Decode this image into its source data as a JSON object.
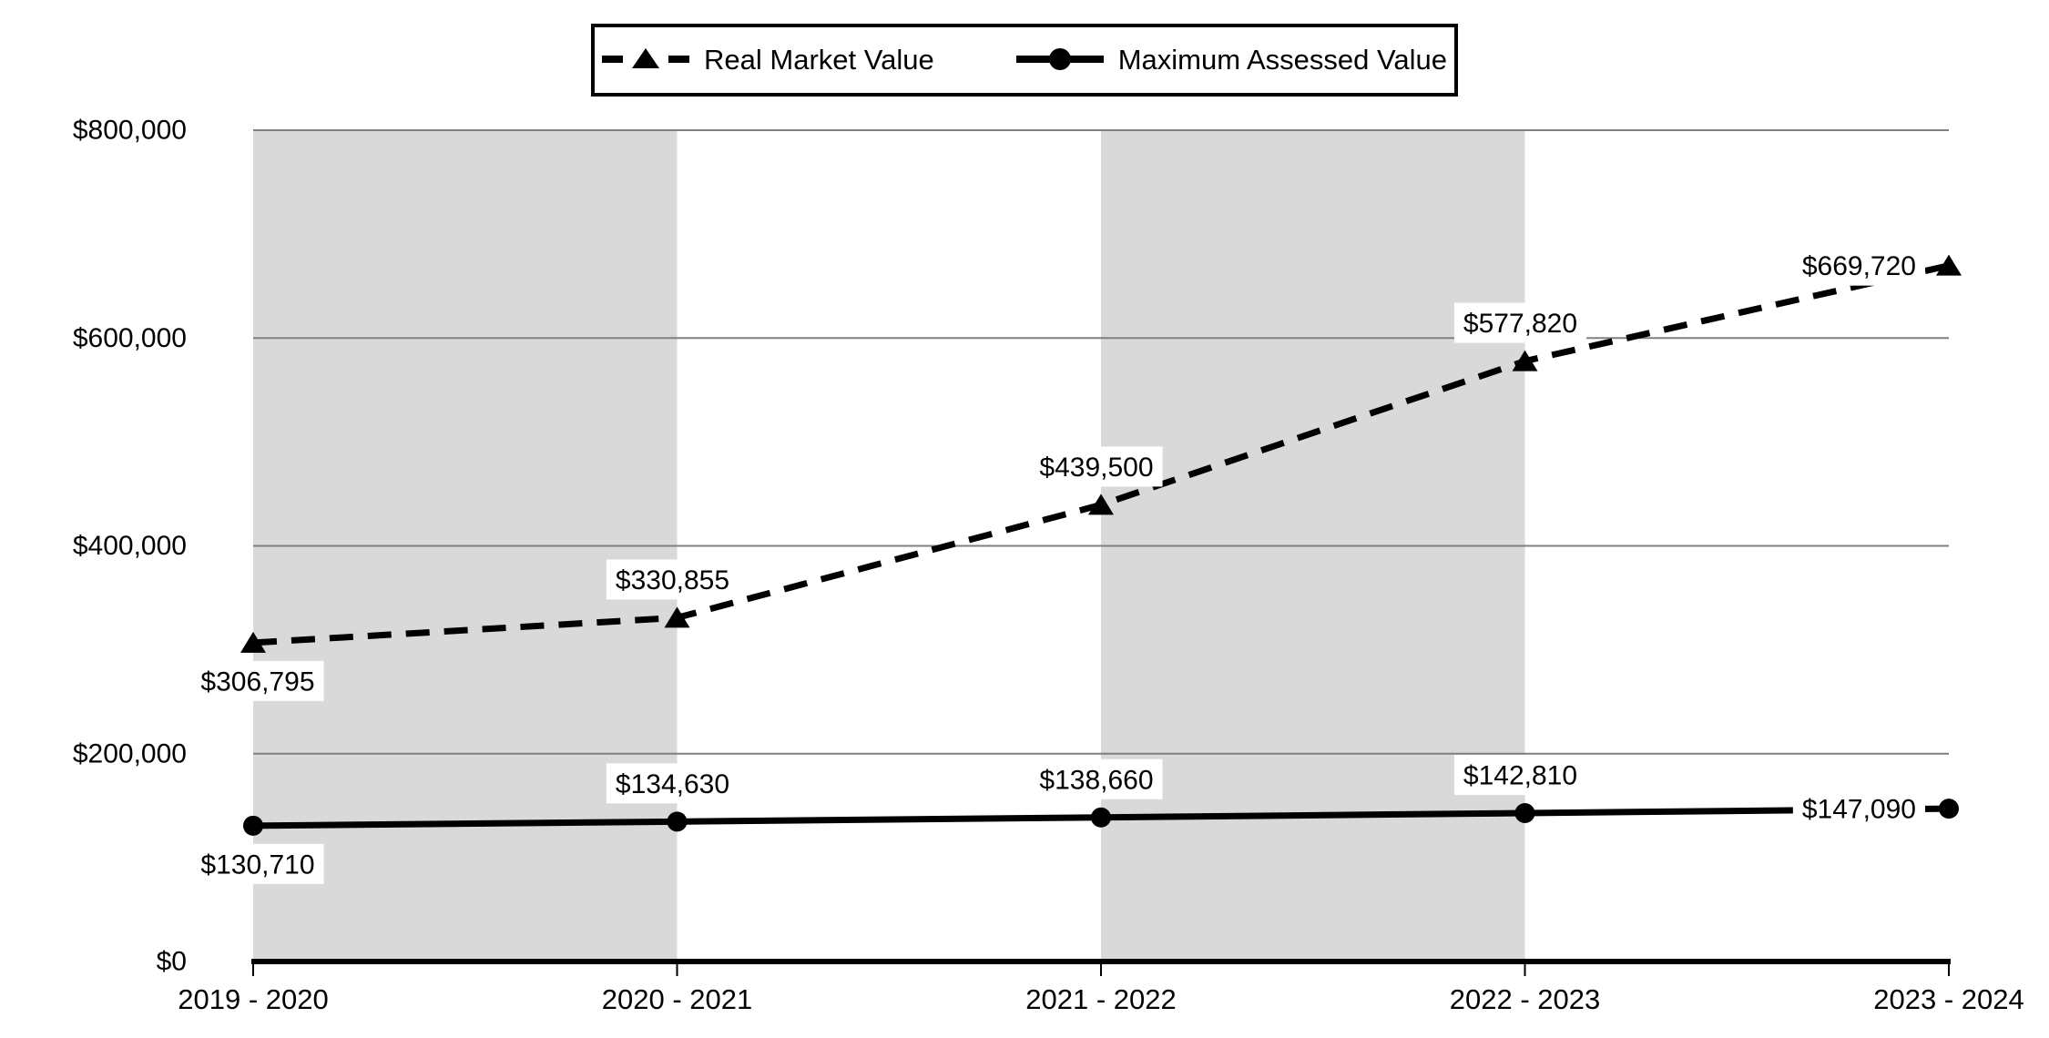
{
  "legend": {
    "items": [
      {
        "label": "Real Market Value",
        "marker": "triangle-dashed-line"
      },
      {
        "label": "Maximum Assessed Value",
        "marker": "circle-solid-line"
      }
    ]
  },
  "chart_data": {
    "type": "line",
    "title": "",
    "xlabel": "",
    "ylabel": "",
    "categories": [
      "2019 - 2020",
      "2020 - 2021",
      "2021 - 2022",
      "2022 - 2023",
      "2023 - 2024"
    ],
    "series": [
      {
        "name": "Real Market Value",
        "line_style": "dashed",
        "marker": "triangle",
        "color": "#000000",
        "values": [
          306795,
          330855,
          439500,
          577820,
          669720
        ],
        "data_labels": [
          "$306,795",
          "$330,855",
          "$439,500",
          "$577,820",
          "$669,720"
        ],
        "label_positions": [
          "below",
          "above",
          "above",
          "above",
          "left"
        ]
      },
      {
        "name": "Maximum Assessed Value",
        "line_style": "solid",
        "marker": "circle",
        "color": "#000000",
        "values": [
          130710,
          134630,
          138660,
          142810,
          147090
        ],
        "data_labels": [
          "$130,710",
          "$134,630",
          "$138,660",
          "$142,810",
          "$147,090"
        ],
        "label_positions": [
          "below",
          "above",
          "above",
          "above",
          "left"
        ]
      }
    ],
    "ylim": [
      0,
      800000
    ],
    "ytick_interval": 200000,
    "yticks": [
      {
        "value": 0,
        "label": "$0"
      },
      {
        "value": 200000,
        "label": "$200,000"
      },
      {
        "value": 400000,
        "label": "$400,000"
      },
      {
        "value": 600000,
        "label": "$600,000"
      },
      {
        "value": 800000,
        "label": "$800,000"
      }
    ],
    "grid": true,
    "legend_position": "top",
    "band_color": "#d9d9d9",
    "banded_category_spans": [
      [
        0,
        1
      ],
      [
        2,
        3
      ]
    ],
    "gridline_color": "#808080",
    "axis_color": "#000000",
    "label_background": "#ffffff"
  }
}
